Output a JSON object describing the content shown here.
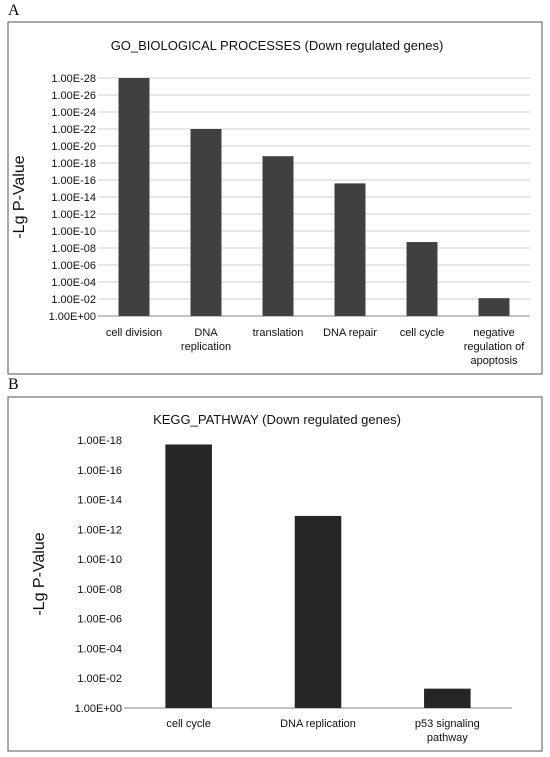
{
  "panels": [
    {
      "letter": "A"
    },
    {
      "letter": "B"
    }
  ],
  "chart_data": [
    {
      "type": "bar",
      "title": "GO_BIOLOGICAL PROCESSES (Down regulated genes)",
      "xlabel": "",
      "ylabel": "-Lg P-Value",
      "categories": [
        "cell division",
        "DNA replication",
        "translation",
        "DNA repair",
        "cell cycle",
        "negative regulation of apoptosis"
      ],
      "category_lines": [
        [
          "cell division"
        ],
        [
          "DNA",
          "replication"
        ],
        [
          "translation"
        ],
        [
          "DNA repair"
        ],
        [
          "cell cycle"
        ],
        [
          "negative",
          "regulation of",
          "apoptosis"
        ]
      ],
      "series": [
        {
          "values": [
            28,
            22,
            18.8,
            15.6,
            8.7,
            2.1
          ]
        }
      ],
      "yticks": [
        "1.00E+00",
        "1.00E-02",
        "1.00E-04",
        "1.00E-06",
        "1.00E-08",
        "1.00E-10",
        "1.00E-12",
        "1.00E-14",
        "1.00E-16",
        "1.00E-18",
        "1.00E-20",
        "1.00E-22",
        "1.00E-24",
        "1.00E-26",
        "1.00E-28"
      ],
      "ylim": [
        0,
        28
      ],
      "grid": true,
      "bar_color": "#404040",
      "grid_color": "#d0d0d0"
    },
    {
      "type": "bar",
      "title": "KEGG_PATHWAY (Down regulated genes)",
      "xlabel": "",
      "ylabel": "-Lg P-Value",
      "categories": [
        "cell cycle",
        "DNA replication",
        "p53 signaling pathway"
      ],
      "category_lines": [
        [
          "cell cycle"
        ],
        [
          "DNA replication"
        ],
        [
          "p53 signaling",
          "pathway"
        ]
      ],
      "series": [
        {
          "values": [
            17.7,
            12.9,
            1.3
          ]
        }
      ],
      "yticks": [
        "1.00E+00",
        "1.00E-02",
        "1.00E-04",
        "1.00E-06",
        "1.00E-08",
        "1.00E-10",
        "1.00E-12",
        "1.00E-14",
        "1.00E-16",
        "1.00E-18"
      ],
      "ylim": [
        0,
        18
      ],
      "grid": false,
      "bar_color": "#262626",
      "grid_color": "#d0d0d0"
    }
  ]
}
